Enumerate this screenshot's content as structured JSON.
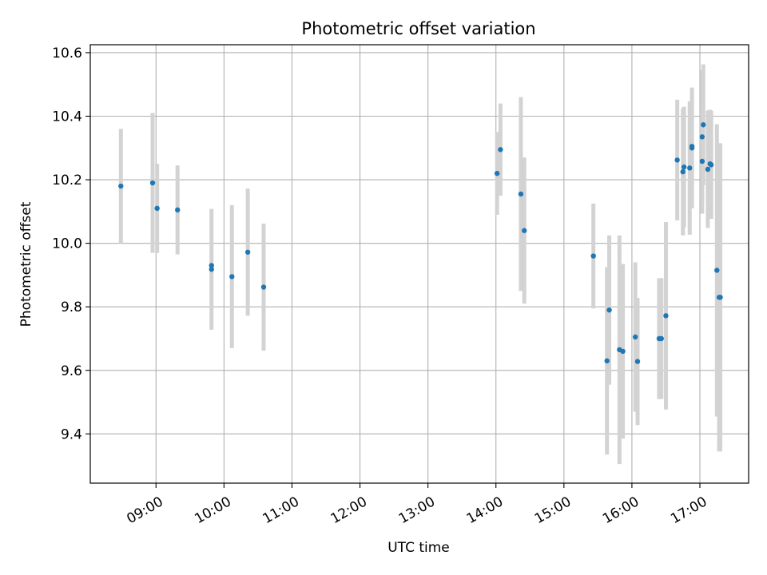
{
  "chart_data": {
    "type": "scatter",
    "title": "Photometric offset variation",
    "xlabel": "UTC time",
    "ylabel": "Photometric offset",
    "x_unit": "time of day (HH:MM, UTC)",
    "xlim": [
      "08:02",
      "17:43"
    ],
    "ylim": [
      9.245,
      10.625
    ],
    "grid": true,
    "x_ticks": [
      "09:00",
      "10:00",
      "11:00",
      "12:00",
      "13:00",
      "14:00",
      "15:00",
      "16:00",
      "17:00"
    ],
    "y_ticks": [
      "9.4",
      "9.6",
      "9.8",
      "10.0",
      "10.2",
      "10.4",
      "10.6"
    ],
    "colors": {
      "marker": "#1f77b4",
      "errorbar": "#d3d3d3",
      "grid": "#b0b0b0"
    },
    "series": [
      {
        "points": [
          {
            "x": "08:29",
            "y": 10.18,
            "err": 0.18
          },
          {
            "x": "08:57",
            "y": 10.19,
            "err": 0.22
          },
          {
            "x": "09:01",
            "y": 10.11,
            "err": 0.14
          },
          {
            "x": "09:19",
            "y": 10.105,
            "err": 0.14
          },
          {
            "x": "09:49",
            "y": 9.93,
            "err": 0.0
          },
          {
            "x": "09:49",
            "y": 9.918,
            "err": 0.19
          },
          {
            "x": "10:07",
            "y": 9.895,
            "err": 0.225
          },
          {
            "x": "10:21",
            "y": 9.972,
            "err": 0.2
          },
          {
            "x": "10:35",
            "y": 9.862,
            "err": 0.2
          },
          {
            "x": "14:01",
            "y": 10.22,
            "err": 0.13
          },
          {
            "x": "14:04",
            "y": 10.295,
            "err": 0.145
          },
          {
            "x": "14:22",
            "y": 10.155,
            "err": 0.305
          },
          {
            "x": "14:25",
            "y": 10.04,
            "err": 0.23
          },
          {
            "x": "15:26",
            "y": 9.96,
            "err": 0.165
          },
          {
            "x": "15:38",
            "y": 9.63,
            "err": 0.295
          },
          {
            "x": "15:40",
            "y": 9.79,
            "err": 0.235
          },
          {
            "x": "15:49",
            "y": 9.665,
            "err": 0.36
          },
          {
            "x": "15:52",
            "y": 9.66,
            "err": 0.275
          },
          {
            "x": "16:03",
            "y": 9.705,
            "err": 0.235
          },
          {
            "x": "16:05",
            "y": 9.628,
            "err": 0.2
          },
          {
            "x": "16:24",
            "y": 9.7,
            "err": 0.19
          },
          {
            "x": "16:26",
            "y": 9.7,
            "err": 0.19
          },
          {
            "x": "16:30",
            "y": 9.772,
            "err": 0.295
          },
          {
            "x": "16:40",
            "y": 10.262,
            "err": 0.19
          },
          {
            "x": "16:45",
            "y": 10.225,
            "err": 0.2
          },
          {
            "x": "16:46",
            "y": 10.24,
            "err": 0.19
          },
          {
            "x": "16:51",
            "y": 10.237,
            "err": 0.21
          },
          {
            "x": "16:53",
            "y": 10.3,
            "err": 0.19
          },
          {
            "x": "16:53",
            "y": 10.305,
            "err": 0.185
          },
          {
            "x": "17:02",
            "y": 10.335,
            "err": 0.21
          },
          {
            "x": "17:02",
            "y": 10.258,
            "err": 0.165
          },
          {
            "x": "17:03",
            "y": 10.373,
            "err": 0.19
          },
          {
            "x": "17:07",
            "y": 10.233,
            "err": 0.185
          },
          {
            "x": "17:09",
            "y": 10.25,
            "err": 0.17
          },
          {
            "x": "17:10",
            "y": 10.247,
            "err": 0.17
          },
          {
            "x": "17:15",
            "y": 9.915,
            "err": 0.46
          },
          {
            "x": "17:17",
            "y": 9.83,
            "err": 0.485
          },
          {
            "x": "17:18",
            "y": 9.83,
            "err": 0.485
          }
        ]
      }
    ]
  }
}
